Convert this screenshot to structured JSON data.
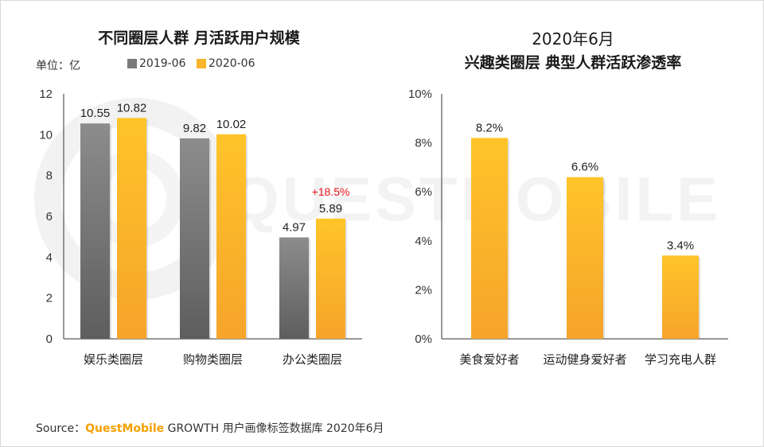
{
  "watermark": {
    "text": "QUESTMOBILE"
  },
  "chart_data": [
    {
      "type": "bar",
      "title": "不同圈层人群 月活跃用户规模",
      "unit_label": "单位：亿",
      "categories": [
        "娱乐类圈层",
        "购物类圈层",
        "办公类圈层"
      ],
      "series": [
        {
          "name": "2019-06",
          "values": [
            10.55,
            9.82,
            4.97
          ],
          "value_labels": [
            "10.55",
            "9.82",
            "4.97"
          ],
          "color": "#7a7a7a"
        },
        {
          "name": "2020-06",
          "values": [
            10.82,
            10.02,
            5.89
          ],
          "value_labels": [
            "10.82",
            "10.02",
            "5.89"
          ],
          "color": "#f7b52b"
        }
      ],
      "ylim": [
        0,
        12
      ],
      "yticks": [
        "0",
        "2",
        "4",
        "6",
        "8",
        "10",
        "12"
      ],
      "annotation": {
        "text": "+18.5%",
        "color": "#e8141c"
      },
      "legend_position": "top",
      "grid": false
    },
    {
      "type": "bar",
      "title_line1": "2020年6月",
      "title_line2": "兴趣类圈层 典型人群活跃渗透率",
      "categories": [
        "美食爱好者",
        "运动健身爱好者",
        "学习充电人群"
      ],
      "values": [
        8.2,
        6.6,
        3.4
      ],
      "value_labels": [
        "8.2%",
        "6.6%",
        "3.4%"
      ],
      "color": "#f7b52b",
      "ylim": [
        0,
        10
      ],
      "yticks": [
        "0%",
        "2%",
        "4%",
        "6%",
        "8%",
        "10%"
      ],
      "grid": false
    }
  ],
  "source": {
    "prefix": "Source：",
    "brand": "QuestMobile",
    "rest": " GROWTH 用户画像标签数据库 2020年6月"
  }
}
